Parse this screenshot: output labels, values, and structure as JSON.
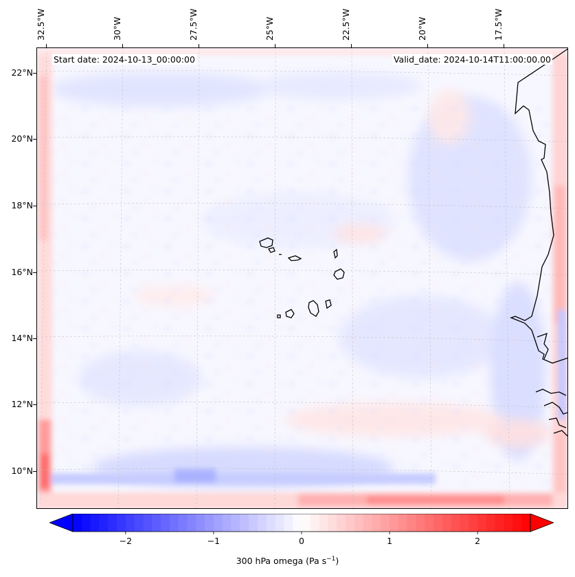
{
  "map": {
    "annotations": {
      "start_date": "Start date: 2024-10-13_00:00:00",
      "valid_date": "Valid_date: 2024-10-14T11:00:00.00"
    },
    "lon_labels": [
      "32.5°W",
      "30°W",
      "27.5°W",
      "25°W",
      "22.5°W",
      "20°W",
      "17.5°W"
    ],
    "lat_labels": [
      "22°N",
      "20°N",
      "18°N",
      "16°N",
      "14°N",
      "12°N",
      "10°N"
    ],
    "field": "300 hPa omega",
    "colormap": "bwr",
    "colors": {
      "negative": "#0000ff",
      "zero": "#ffffff",
      "positive": "#ff0000"
    },
    "gridlines": true,
    "coastline": true
  },
  "colorbar": {
    "label": "300 hPa omega (Pa s",
    "label_sup": "−1",
    "label_end": ")",
    "ticks": [
      "−2",
      "−1",
      "0",
      "1",
      "2"
    ],
    "tick_values": [
      -2,
      -1,
      0,
      1,
      2
    ],
    "range": [
      -2.6,
      2.6
    ],
    "extend": "both",
    "orientation": "horizontal"
  }
}
